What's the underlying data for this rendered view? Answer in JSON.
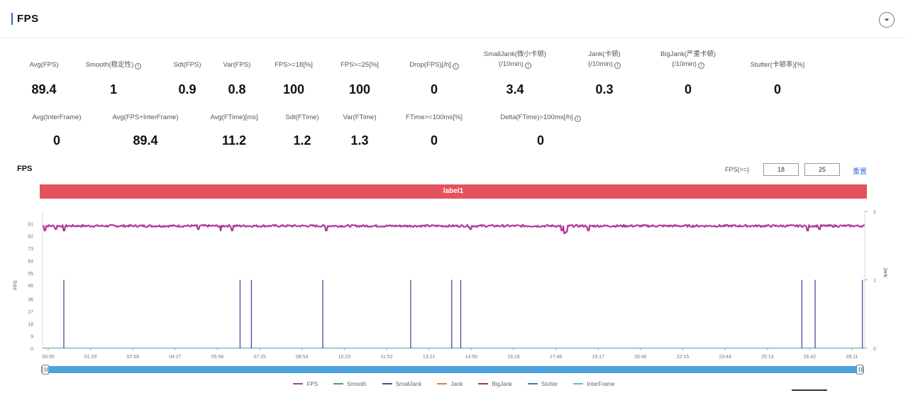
{
  "panel": {
    "title": "FPS"
  },
  "metrics_row1": [
    {
      "label": "Avg(FPS)",
      "info": false,
      "value": "89.4"
    },
    {
      "label": "Smooth(稳定性)",
      "info": true,
      "value": "1"
    },
    {
      "label": "Sdt(FPS)",
      "info": false,
      "value": "0.9"
    },
    {
      "label": "Var(FPS)",
      "info": false,
      "value": "0.8"
    },
    {
      "label": "FPS>=18[%]",
      "info": false,
      "value": "100"
    },
    {
      "label": "FPS>=25[%]",
      "info": false,
      "value": "100"
    },
    {
      "label": "Drop(FPS)[/h]",
      "info": true,
      "value": "0"
    },
    {
      "label": "SmallJank(微小卡顿)",
      "label2": "(/10min)",
      "info": true,
      "value": "3.4"
    },
    {
      "label": "Jank(卡顿)",
      "label2": "(/10min)",
      "info": true,
      "value": "0.3"
    },
    {
      "label": "BigJank(严重卡顿)",
      "label2": "(/10min)",
      "info": true,
      "value": "0"
    },
    {
      "label": "Stutter(卡顿率)[%]",
      "info": false,
      "value": "0"
    }
  ],
  "metrics_row2": [
    {
      "label": "Avg(InterFrame)",
      "info": false,
      "value": "0"
    },
    {
      "label": "Avg(FPS+InterFrame)",
      "info": false,
      "value": "89.4"
    },
    {
      "label": "Avg(FTime)[ms]",
      "info": false,
      "value": "11.2"
    },
    {
      "label": "Sdt(FTime)",
      "info": false,
      "value": "1.2"
    },
    {
      "label": "Var(FTime)",
      "info": false,
      "value": "1.3"
    },
    {
      "label": "FTime>=100ms[%]",
      "info": false,
      "value": "0"
    },
    {
      "label": "Delta(FTime)>100ms[/h]",
      "info": true,
      "value": "0"
    }
  ],
  "chart_header": {
    "title": "FPS",
    "filter_label": "FPS(>=)",
    "filter_values": [
      "18",
      "25"
    ],
    "reset_label": "重置"
  },
  "label_band": {
    "text": "label1"
  },
  "legend": [
    {
      "name": "FPS",
      "color": "#b03a9e"
    },
    {
      "name": "Smooth",
      "color": "#3aa564"
    },
    {
      "name": "SmallJank",
      "color": "#4b4b9c"
    },
    {
      "name": "Jank",
      "color": "#e87d2a"
    },
    {
      "name": "BigJank",
      "color": "#b3304a"
    },
    {
      "name": "Stutter",
      "color": "#2f7fc1"
    },
    {
      "name": "InterFrame",
      "color": "#4fc4d6"
    }
  ],
  "chart_data": {
    "type": "line",
    "title": "FPS",
    "xlabel": "",
    "ylabel": "FPS",
    "ylabel_right": "Jank",
    "ylim": [
      0,
      100
    ],
    "y_ticks": [
      0,
      9,
      18,
      27,
      36,
      46,
      55,
      64,
      73,
      82,
      91
    ],
    "ylim_right": [
      0,
      2
    ],
    "y_ticks_right": [
      0,
      1,
      2
    ],
    "x_ticks": [
      "00:00",
      "01:29",
      "02:58",
      "04:27",
      "05:56",
      "07:25",
      "08:54",
      "10:23",
      "11:52",
      "13:21",
      "14:50",
      "16:19",
      "17:48",
      "19:17",
      "20:46",
      "22:15",
      "23:44",
      "25:13",
      "26:42",
      "28:11"
    ],
    "x_range_seconds": [
      0,
      1740
    ],
    "series": [
      {
        "name": "FPS",
        "axis": "left",
        "baseline": 89.4,
        "dips": [
          {
            "t": 5,
            "v": 86
          },
          {
            "t": 28,
            "v": 87
          },
          {
            "t": 45,
            "v": 86
          },
          {
            "t": 330,
            "v": 87
          },
          {
            "t": 377,
            "v": 86
          },
          {
            "t": 402,
            "v": 86
          },
          {
            "t": 600,
            "v": 86
          },
          {
            "t": 905,
            "v": 87
          },
          {
            "t": 1100,
            "v": 86
          },
          {
            "t": 1105,
            "v": 84
          },
          {
            "t": 1108,
            "v": 85
          },
          {
            "t": 1155,
            "v": 86
          },
          {
            "t": 1620,
            "v": 86
          },
          {
            "t": 1645,
            "v": 87
          }
        ]
      },
      {
        "name": "SmallJank",
        "axis": "right",
        "spikes": [
          {
            "t": 45,
            "v": 1
          },
          {
            "t": 418,
            "v": 1
          },
          {
            "t": 442,
            "v": 1
          },
          {
            "t": 593,
            "v": 1
          },
          {
            "t": 779,
            "v": 1
          },
          {
            "t": 866,
            "v": 1
          },
          {
            "t": 885,
            "v": 1
          },
          {
            "t": 1607,
            "v": 1
          },
          {
            "t": 1635,
            "v": 1
          },
          {
            "t": 1735,
            "v": 1
          }
        ]
      },
      {
        "name": "Smooth",
        "axis": "right",
        "baseline": 0
      },
      {
        "name": "Jank",
        "axis": "right",
        "baseline": 0
      },
      {
        "name": "BigJank",
        "axis": "right",
        "baseline": 0
      },
      {
        "name": "Stutter",
        "axis": "right",
        "baseline": 0
      },
      {
        "name": "InterFrame",
        "axis": "left",
        "baseline": 0
      }
    ]
  }
}
